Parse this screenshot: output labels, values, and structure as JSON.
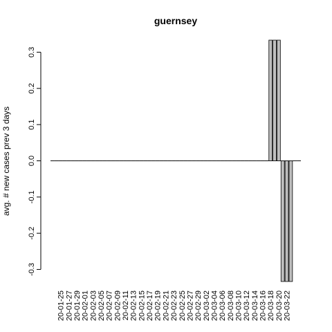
{
  "chart_data": {
    "type": "bar",
    "title": "guernsey",
    "xlabel": "",
    "ylabel": "avg. # new cases prev  3  days",
    "ylim": [
      -0.3333,
      0.3333
    ],
    "yticks": [
      -0.3,
      -0.2,
      -0.1,
      0.0,
      0.1,
      0.2,
      0.3
    ],
    "ytick_labels": [
      "-0.3",
      "-0.2",
      "-0.1",
      "0.0",
      "0.1",
      "0.2",
      "0.3"
    ],
    "bar_fill": "#bebebe",
    "bar_stroke": "#000000",
    "x_tick_labels": [
      "20-01-25",
      "20-01-27",
      "20-01-29",
      "20-02-01",
      "20-02-03",
      "20-02-05",
      "20-02-07",
      "20-02-09",
      "20-02-11",
      "20-02-13",
      "20-02-15",
      "20-02-17",
      "20-02-19",
      "20-02-21",
      "20-02-23",
      "20-02-25",
      "20-02-27",
      "20-02-29",
      "20-03-02",
      "20-03-04",
      "20-03-06",
      "20-03-08",
      "20-03-10",
      "20-03-12",
      "20-03-14",
      "20-03-16",
      "20-03-18",
      "20-03-20",
      "20-03-22"
    ],
    "categories": [
      "20-01-23",
      "20-01-24",
      "20-01-25",
      "20-01-26",
      "20-01-27",
      "20-01-28",
      "20-01-29",
      "20-01-30",
      "20-01-31",
      "20-02-01",
      "20-02-02",
      "20-02-03",
      "20-02-04",
      "20-02-05",
      "20-02-06",
      "20-02-07",
      "20-02-08",
      "20-02-09",
      "20-02-10",
      "20-02-11",
      "20-02-12",
      "20-02-13",
      "20-02-14",
      "20-02-15",
      "20-02-16",
      "20-02-17",
      "20-02-18",
      "20-02-19",
      "20-02-20",
      "20-02-21",
      "20-02-22",
      "20-02-23",
      "20-02-24",
      "20-02-25",
      "20-02-26",
      "20-02-27",
      "20-02-28",
      "20-02-29",
      "20-03-01",
      "20-03-02",
      "20-03-03",
      "20-03-04",
      "20-03-05",
      "20-03-06",
      "20-03-07",
      "20-03-08",
      "20-03-09",
      "20-03-10",
      "20-03-11",
      "20-03-12",
      "20-03-13",
      "20-03-14",
      "20-03-15",
      "20-03-16",
      "20-03-17",
      "20-03-18",
      "20-03-19",
      "20-03-20",
      "20-03-21",
      "20-03-22",
      "20-03-23",
      "20-03-24"
    ],
    "values": [
      0,
      0,
      0,
      0,
      0,
      0,
      0,
      0,
      0,
      0,
      0,
      0,
      0,
      0,
      0,
      0,
      0,
      0,
      0,
      0,
      0,
      0,
      0,
      0,
      0,
      0,
      0,
      0,
      0,
      0,
      0,
      0,
      0,
      0,
      0,
      0,
      0,
      0,
      0,
      0,
      0,
      0,
      0,
      0,
      0,
      0,
      0,
      0,
      0,
      0,
      0,
      0,
      0,
      0,
      0.3333,
      0.3333,
      0.3333,
      -0.3333,
      -0.3333,
      -0.3333,
      0,
      0
    ],
    "grid": false,
    "legend": "none"
  }
}
